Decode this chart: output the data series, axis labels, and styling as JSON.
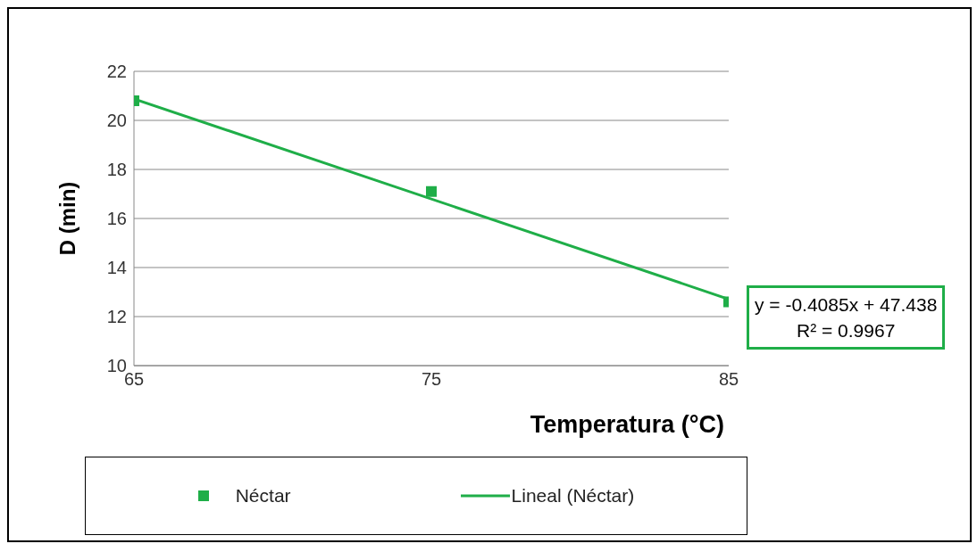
{
  "chart_data": {
    "type": "scatter",
    "xlabel": "Temperatura (°C)",
    "ylabel": "D (min)",
    "xlim": [
      65,
      85
    ],
    "xticks": [
      65,
      75,
      85
    ],
    "ylim": [
      10,
      22
    ],
    "yticks": [
      10,
      12,
      14,
      16,
      18,
      20,
      22
    ],
    "grid": "y",
    "legend": "bottom",
    "series": [
      {
        "name": "Néctar",
        "marker": "square",
        "color": "#1fae48",
        "x": [
          65,
          75,
          85
        ],
        "values": [
          20.8,
          17.1,
          12.6
        ]
      },
      {
        "name": "Lineal (Néctar)",
        "type": "line",
        "marker": "none",
        "color": "#1fae48",
        "x": [
          65,
          85
        ],
        "values": [
          20.88,
          12.71
        ]
      }
    ],
    "annotations": [
      "y = -0.4085x + 47.438",
      "R² = 0.9967"
    ]
  }
}
